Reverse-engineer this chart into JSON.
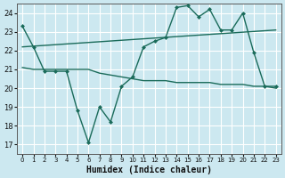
{
  "xlabel": "Humidex (Indice chaleur)",
  "bg_color": "#cce8f0",
  "grid_color": "#ffffff",
  "line_color": "#1a6b5a",
  "xlim": [
    -0.5,
    23.5
  ],
  "ylim": [
    16.5,
    24.5
  ],
  "yticks": [
    17,
    18,
    19,
    20,
    21,
    22,
    23,
    24
  ],
  "xticks": [
    0,
    1,
    2,
    3,
    4,
    5,
    6,
    7,
    8,
    9,
    10,
    11,
    12,
    13,
    14,
    15,
    16,
    17,
    18,
    19,
    20,
    21,
    22,
    23
  ],
  "line1_x": [
    0,
    1,
    2,
    3,
    4,
    5,
    6,
    7,
    8,
    9,
    10,
    11,
    12,
    13,
    14,
    15,
    16,
    17,
    18,
    19,
    20,
    21,
    22,
    23
  ],
  "line1_y": [
    23.3,
    22.2,
    20.9,
    20.9,
    20.9,
    18.8,
    17.1,
    19.0,
    18.2,
    20.1,
    20.6,
    22.2,
    22.5,
    22.7,
    24.3,
    24.4,
    23.8,
    24.2,
    23.1,
    23.1,
    24.0,
    21.9,
    20.1,
    20.1
  ],
  "line2_x": [
    0,
    1,
    2,
    3,
    4,
    5,
    6,
    7,
    8,
    9,
    10,
    11,
    12,
    13,
    14,
    15,
    16,
    17,
    18,
    19,
    20,
    21,
    22,
    23
  ],
  "line2_y": [
    21.1,
    21.0,
    21.0,
    21.0,
    21.0,
    21.0,
    21.0,
    20.8,
    20.7,
    20.6,
    20.5,
    20.4,
    20.4,
    20.4,
    20.3,
    20.3,
    20.3,
    20.3,
    20.2,
    20.2,
    20.2,
    20.1,
    20.1,
    20.0
  ],
  "line3_x": [
    0,
    23
  ],
  "line3_y": [
    22.2,
    23.1
  ]
}
